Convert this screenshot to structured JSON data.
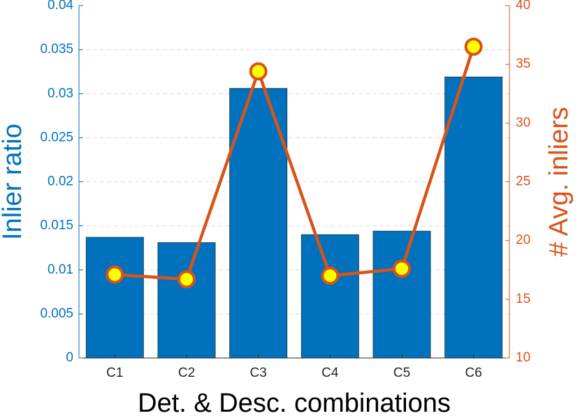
{
  "chart_data": {
    "type": "bar",
    "title": "",
    "xlabel": "Det. & Desc. combinations",
    "categories": [
      "C1",
      "C2",
      "C3",
      "C4",
      "C5",
      "C6"
    ],
    "series": [
      {
        "name": "Inlier ratio",
        "type": "bar",
        "axis": "left",
        "color": "#0072BD",
        "values": [
          0.0137,
          0.0131,
          0.0306,
          0.014,
          0.0144,
          0.0319
        ]
      },
      {
        "name": "# Avg. inliers",
        "type": "line",
        "axis": "right",
        "color": "#D95319",
        "marker_color": "#FFFF00",
        "values": [
          17.1,
          16.7,
          34.4,
          17.0,
          17.6,
          36.5
        ]
      }
    ],
    "y_left": {
      "label": "Inlier ratio",
      "range": [
        0,
        0.04
      ],
      "ticks": [
        "0",
        "0.005",
        "0.01",
        "0.015",
        "0.02",
        "0.025",
        "0.03",
        "0.035",
        "0.04"
      ],
      "color": "#0072BD"
    },
    "y_right": {
      "label": "# Avg. inliers",
      "range": [
        10,
        40
      ],
      "ticks": [
        "10",
        "15",
        "20",
        "25",
        "30",
        "35",
        "40"
      ],
      "color": "#D95319"
    },
    "grid": true
  }
}
